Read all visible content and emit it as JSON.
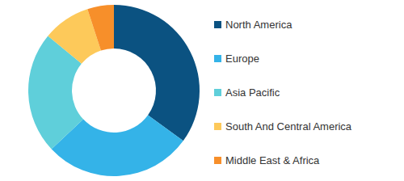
{
  "chart_data": {
    "type": "pie",
    "categories": [
      "North America",
      "Europe",
      "Asia Pacific",
      "South And Central America",
      "Middle East & Africa"
    ],
    "values": [
      35,
      28,
      23,
      9,
      5
    ],
    "colors": [
      "#0b5281",
      "#34b3e8",
      "#5fcfda",
      "#fdc95a",
      "#f78f2a"
    ],
    "legend": "right",
    "data_labels": false
  }
}
